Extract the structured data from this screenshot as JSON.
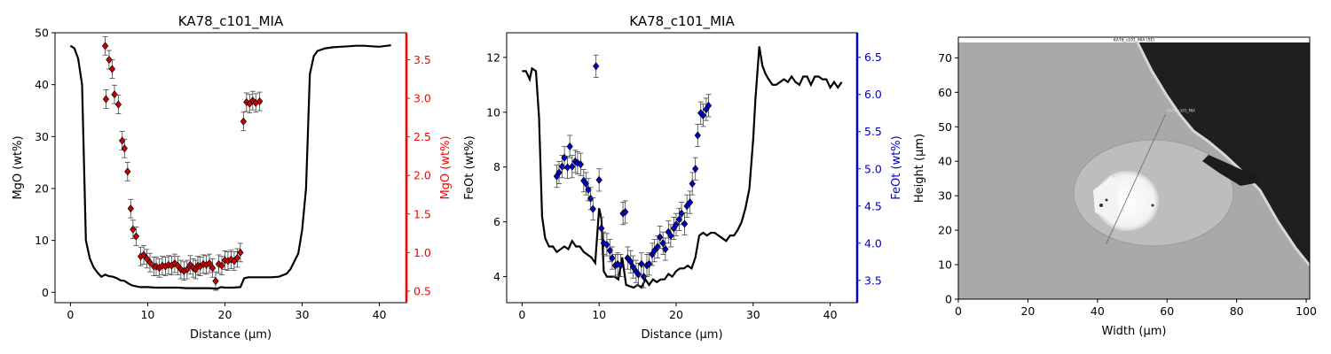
{
  "chart_data": [
    {
      "type": "line+scatter",
      "title": "KA78_c101_MIA",
      "xlabel": "Distance (µm)",
      "ylabel": "MgO (wt%)",
      "ylabel_right": "MgO (wt%)",
      "xlim": [
        -2,
        43.5
      ],
      "ylim": [
        -2,
        50
      ],
      "ylim_right": [
        0.35,
        3.85
      ],
      "xticks": [
        0,
        10,
        20,
        30,
        40
      ],
      "yticks": [
        0,
        10,
        20,
        30,
        40,
        50
      ],
      "yticks_right": [
        0.5,
        1.0,
        1.5,
        2.0,
        2.5,
        3.0,
        3.5
      ],
      "right_axis_color": "#ff0000",
      "marker_color": "#cc0000",
      "line_color": "#000000",
      "line": {
        "x": [
          0,
          0.5,
          1.0,
          1.5,
          2.0,
          2.5,
          3.0,
          3.5,
          4.0,
          4.5,
          5.0,
          5.5,
          6.0,
          6.5,
          7.0,
          7.5,
          8.0,
          9.0,
          10.0,
          11.0,
          12.0,
          13.0,
          14.0,
          15.0,
          16.0,
          17.0,
          18.0,
          19.0,
          19.5,
          20.0,
          21.0,
          22.0,
          22.5,
          23.0,
          24.0,
          25.0,
          26.0,
          27.0,
          28.0,
          28.5,
          29.0,
          29.5,
          30.0,
          30.5,
          31.0,
          31.5,
          32.0,
          33.0,
          34.0,
          35.0,
          36.0,
          37.0,
          38.0,
          39.0,
          40.0,
          41.0,
          41.5
        ],
        "y": [
          47.5,
          47,
          45,
          40,
          10,
          6.5,
          4.8,
          3.8,
          3.0,
          3.4,
          3.1,
          3.0,
          2.7,
          2.3,
          2.2,
          1.7,
          1.3,
          1.0,
          1.0,
          0.9,
          0.9,
          0.9,
          0.9,
          0.8,
          0.8,
          0.8,
          0.8,
          0.7,
          1.0,
          0.9,
          0.9,
          1.0,
          2.7,
          2.9,
          2.9,
          2.9,
          2.9,
          3.0,
          3.6,
          4.5,
          6.0,
          7.5,
          12.0,
          20.0,
          42.0,
          45.5,
          46.5,
          47.0,
          47.2,
          47.3,
          47.4,
          47.5,
          47.5,
          47.4,
          47.3,
          47.5,
          47.6
        ]
      },
      "points": {
        "x": [
          4.5,
          4.6,
          5.0,
          5.4,
          5.7,
          6.2,
          6.7,
          7.0,
          7.4,
          7.8,
          8.1,
          8.5,
          9.1,
          9.5,
          9.9,
          10.3,
          10.8,
          11.1,
          11.5,
          11.9,
          12.3,
          12.7,
          13.1,
          13.5,
          13.9,
          14.3,
          14.7,
          15.1,
          15.5,
          15.9,
          16.2,
          16.5,
          16.8,
          17.2,
          17.6,
          18.0,
          18.4,
          18.8,
          19.2,
          19.6,
          20.0,
          20.4,
          20.8,
          21.2,
          21.6,
          22.0,
          22.4,
          22.8,
          23.2,
          23.6,
          24.0,
          24.5
        ],
        "y": [
          3.68,
          2.99,
          3.5,
          3.38,
          3.05,
          2.92,
          2.45,
          2.35,
          2.05,
          1.57,
          1.3,
          1.21,
          0.95,
          0.97,
          0.92,
          0.87,
          0.82,
          0.82,
          0.8,
          0.83,
          0.82,
          0.84,
          0.83,
          0.86,
          0.83,
          0.78,
          0.76,
          0.78,
          0.84,
          0.8,
          0.78,
          0.83,
          0.82,
          0.85,
          0.84,
          0.86,
          0.8,
          0.63,
          0.85,
          0.83,
          0.9,
          0.89,
          0.91,
          0.89,
          0.93,
          1.0,
          2.7,
          2.95,
          2.93,
          2.97,
          2.94,
          2.96
        ],
        "err": 0.12
      }
    },
    {
      "type": "line+scatter",
      "title": "KA78_c101_MIA",
      "xlabel": "Distance (µm)",
      "ylabel": "FeOt (wt%)",
      "ylabel_right": "FeOt (wt%)",
      "xlim": [
        -2,
        43.5
      ],
      "ylim": [
        3.05,
        12.9
      ],
      "ylim_right": [
        3.2,
        6.83
      ],
      "xticks": [
        0,
        10,
        20,
        30,
        40
      ],
      "yticks": [
        4,
        6,
        8,
        10,
        12
      ],
      "yticks_right": [
        3.5,
        4.0,
        4.5,
        5.0,
        5.5,
        6.0,
        6.5
      ],
      "right_axis_color": "#0000cc",
      "marker_color": "#0000cc",
      "line_color": "#000000",
      "line": {
        "x": [
          0,
          0.5,
          1.0,
          1.3,
          1.8,
          2.2,
          2.6,
          3.0,
          3.5,
          4.0,
          4.5,
          5.0,
          5.5,
          6.0,
          6.5,
          7.0,
          7.5,
          8.0,
          8.5,
          9.0,
          9.5,
          10.0,
          10.3,
          10.6,
          11.0,
          11.5,
          12.0,
          12.5,
          13.0,
          13.5,
          14.0,
          14.5,
          15.0,
          15.5,
          16.0,
          16.5,
          17.0,
          17.5,
          18.0,
          18.5,
          19.0,
          19.5,
          20.0,
          20.5,
          21.0,
          21.5,
          22.0,
          22.5,
          23.0,
          23.5,
          24.0,
          24.5,
          25.0,
          25.5,
          26.0,
          26.5,
          27.0,
          27.5,
          28.0,
          28.5,
          29.0,
          29.5,
          30.0,
          30.3,
          30.8,
          31.2,
          31.6,
          32.0,
          32.5,
          33.0,
          33.5,
          34.0,
          34.5,
          35.0,
          35.5,
          36.0,
          36.5,
          37.0,
          37.5,
          38.0,
          38.5,
          39.0,
          39.5,
          40.0,
          40.5,
          41.0,
          41.5
        ],
        "y": [
          11.5,
          11.5,
          11.2,
          11.6,
          11.5,
          9.8,
          6.2,
          5.4,
          5.1,
          5.1,
          4.9,
          5.0,
          5.1,
          5.0,
          5.3,
          5.1,
          5.1,
          4.9,
          4.8,
          4.7,
          4.5,
          6.5,
          6.1,
          4.2,
          4.0,
          4.0,
          4.0,
          3.9,
          4.7,
          3.7,
          3.65,
          3.6,
          3.7,
          3.6,
          3.9,
          3.7,
          3.9,
          3.8,
          3.9,
          3.9,
          4.1,
          4.0,
          4.2,
          4.3,
          4.3,
          4.4,
          4.3,
          4.7,
          5.5,
          5.6,
          5.5,
          5.6,
          5.6,
          5.5,
          5.4,
          5.3,
          5.5,
          5.5,
          5.7,
          6.0,
          6.5,
          7.2,
          9.0,
          10.5,
          12.4,
          11.7,
          11.4,
          11.2,
          11.0,
          11.0,
          11.1,
          11.2,
          11.1,
          11.3,
          11.1,
          11.0,
          11.3,
          11.3,
          11.0,
          11.3,
          11.3,
          11.2,
          11.2,
          10.9,
          11.1,
          10.9,
          11.1
        ]
      },
      "points": {
        "x": [
          4.5,
          4.8,
          5.2,
          5.5,
          5.9,
          6.2,
          6.5,
          6.9,
          7.2,
          7.6,
          8.0,
          8.3,
          8.6,
          8.9,
          9.2,
          9.6,
          10.0,
          10.3,
          10.6,
          11.0,
          11.4,
          11.7,
          12.1,
          12.4,
          12.8,
          13.1,
          13.4,
          13.7,
          14.1,
          14.4,
          14.8,
          15.1,
          15.5,
          15.8,
          16.2,
          16.5,
          16.9,
          17.2,
          17.6,
          17.9,
          18.3,
          18.6,
          19.0,
          19.3,
          19.7,
          20.0,
          20.4,
          20.7,
          21.1,
          21.4,
          21.8,
          22.1,
          22.5,
          22.8,
          23.2,
          23.5,
          23.9,
          24.2
        ],
        "y": [
          4.9,
          4.95,
          5.03,
          5.15,
          5.02,
          5.3,
          5.03,
          5.1,
          5.08,
          5.06,
          4.84,
          4.8,
          4.72,
          4.6,
          4.46,
          6.38,
          4.85,
          4.2,
          4.0,
          3.98,
          3.9,
          3.8,
          3.7,
          3.72,
          3.7,
          4.4,
          4.42,
          3.8,
          3.75,
          3.68,
          3.62,
          3.58,
          3.72,
          3.55,
          3.7,
          3.72,
          3.85,
          3.9,
          3.95,
          4.08,
          4.0,
          3.92,
          4.15,
          4.1,
          4.2,
          4.25,
          4.32,
          4.4,
          4.26,
          4.5,
          4.55,
          4.8,
          5.0,
          5.45,
          5.75,
          5.72,
          5.8,
          5.85
        ],
        "err": 0.15
      }
    },
    {
      "type": "image",
      "title": "KA78_c101_MIA (SE)",
      "annotation": "KA78_c101_MIA",
      "xlabel": "Width (µm)",
      "ylabel": "Height (µm)",
      "xlim": [
        0,
        101
      ],
      "ylim": [
        0,
        76
      ],
      "xticks": [
        0,
        20,
        40,
        60,
        80,
        100
      ],
      "yticks": [
        0,
        10,
        20,
        30,
        40,
        50,
        60,
        70
      ],
      "profile_line": {
        "x": [
          42.5,
          59.5
        ],
        "y": [
          16,
          53.5
        ]
      }
    }
  ]
}
